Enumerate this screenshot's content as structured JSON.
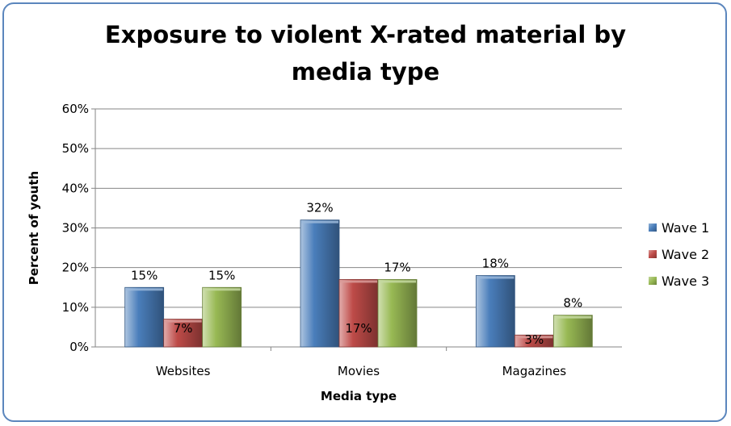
{
  "chart_data": {
    "type": "bar",
    "title_line1": "Exposure to violent X-rated material by",
    "title_line2": "media type",
    "xlabel": "Media type",
    "ylabel": "Percent of youth",
    "categories": [
      "Websites",
      "Movies",
      "Magazines"
    ],
    "series": [
      {
        "name": "Wave 1",
        "color": "#4a7ebb",
        "values": [
          15,
          32,
          18
        ],
        "labels": [
          "15%",
          "32%",
          "18%"
        ]
      },
      {
        "name": "Wave 2",
        "color": "#be4b48",
        "values": [
          7,
          17,
          3
        ],
        "labels": [
          "7%",
          "17%",
          "3%"
        ]
      },
      {
        "name": "Wave 3",
        "color": "#98b954",
        "values": [
          15,
          17,
          8
        ],
        "labels": [
          "15%",
          "17%",
          "8%"
        ]
      }
    ],
    "ylim": [
      0,
      60
    ],
    "yticks": [
      0,
      10,
      20,
      30,
      40,
      50,
      60
    ],
    "ytick_labels": [
      "0%",
      "10%",
      "20%",
      "30%",
      "40%",
      "50%",
      "60%"
    ],
    "grid": true,
    "legend_position": "right"
  }
}
